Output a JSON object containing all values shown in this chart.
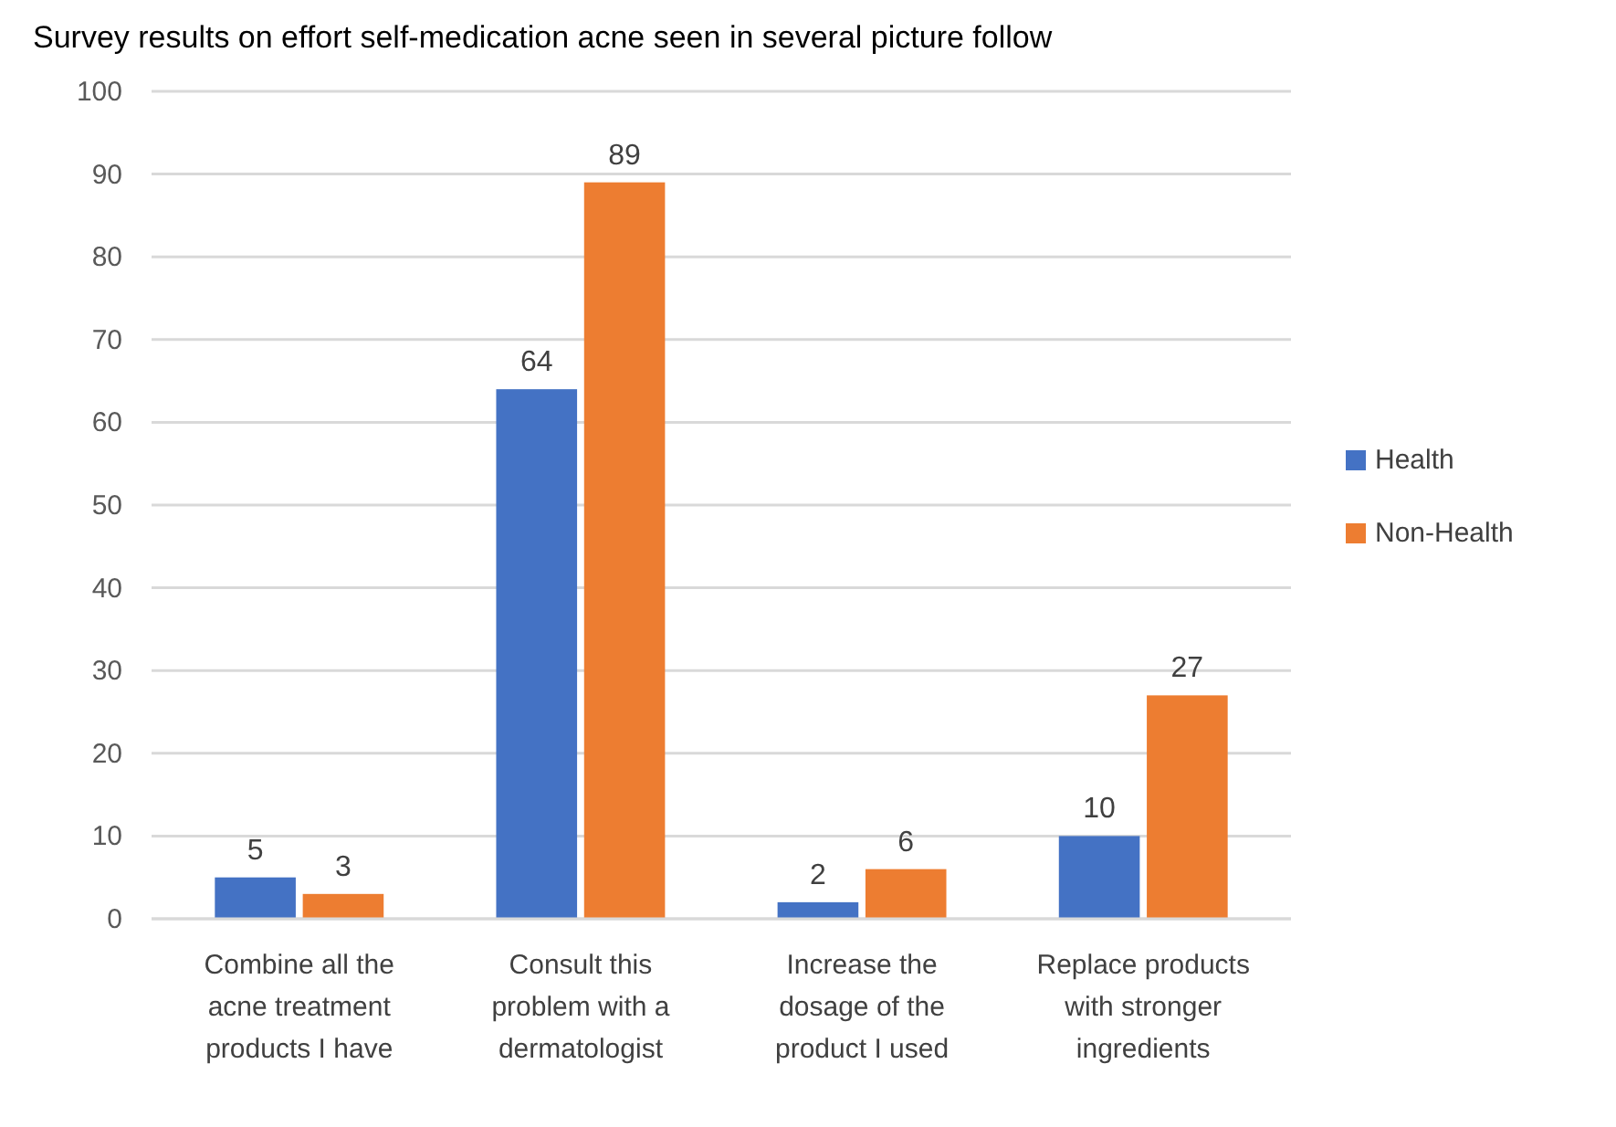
{
  "chart_data": {
    "type": "bar",
    "title": "Survey results on effort self-medication acne seen in several picture follow",
    "categories": [
      "Combine all the acne treatment products I have",
      "Consult this problem with a dermatologist",
      "Increase the dosage of the product I used",
      "Replace products with stronger ingredients"
    ],
    "series": [
      {
        "name": "Health",
        "color": "#4472c4",
        "values": [
          5,
          64,
          2,
          10
        ]
      },
      {
        "name": "Non-Health",
        "color": "#ed7d31",
        "values": [
          3,
          89,
          6,
          27
        ]
      }
    ],
    "ylim": [
      0,
      100
    ],
    "yticks": [
      0,
      10,
      20,
      30,
      40,
      50,
      60,
      70,
      80,
      90,
      100
    ],
    "grid": "y",
    "legend": "right",
    "data_labels": true
  }
}
